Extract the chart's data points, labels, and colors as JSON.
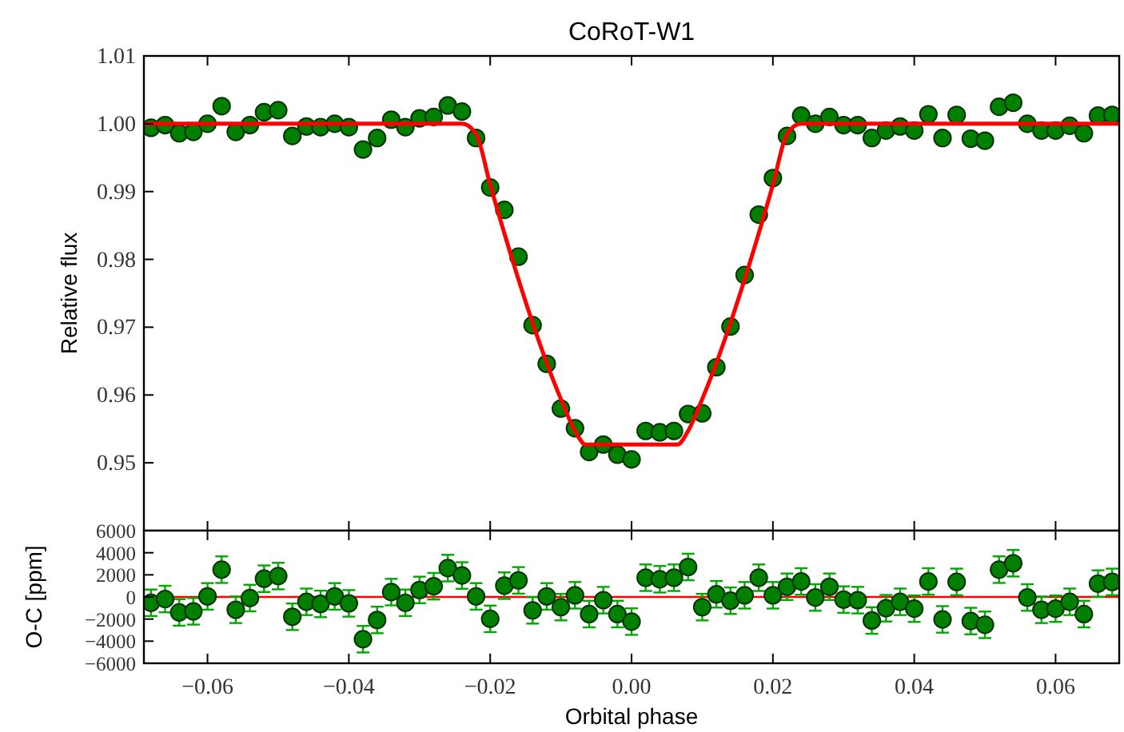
{
  "chart_data": [
    {
      "type": "scatter",
      "title": "CoRoT-W1",
      "ylabel": "Relative flux",
      "xlim": [
        -0.069,
        0.069
      ],
      "ylim": [
        0.94,
        1.01
      ],
      "xticks": [
        -0.06,
        -0.04,
        -0.02,
        0,
        0.02,
        0.04,
        0.06
      ],
      "yticks": [
        {
          "value": 0.94,
          "label": null
        },
        0.95,
        0.96,
        0.97,
        0.98,
        0.99,
        {
          "value": 1,
          "label": "1.00"
        },
        1.01
      ],
      "tick_labels": "y",
      "series": [
        {
          "marker": "circle",
          "color": "#007f00",
          "x": [
            -0.068,
            -0.066,
            -0.064,
            -0.062,
            -0.06,
            -0.058,
            -0.056,
            -0.054,
            -0.052,
            -0.05,
            -0.048,
            -0.046,
            -0.044,
            -0.042,
            -0.04,
            -0.038,
            -0.036,
            -0.034,
            -0.032,
            -0.03,
            -0.028,
            -0.026,
            -0.024,
            -0.022,
            -0.02,
            -0.018,
            -0.016,
            -0.014,
            -0.012,
            -0.01,
            -0.008,
            -0.006,
            -0.004,
            -0.002,
            0,
            0.002,
            0.004,
            0.006,
            0.008,
            0.01,
            0.012,
            0.014,
            0.016,
            0.018,
            0.02,
            0.022,
            0.024,
            0.026,
            0.028,
            0.03,
            0.032,
            0.034,
            0.036,
            0.038,
            0.04,
            0.042,
            0.044,
            0.046,
            0.048,
            0.05,
            0.052,
            0.054,
            0.056,
            0.058,
            0.06,
            0.062,
            0.064,
            0.066,
            0.068
          ],
          "values": [
            0.9994,
            0.9998,
            0.9986,
            0.9988,
            1.0,
            1.0026,
            0.9988,
            0.9998,
            1.0017,
            1.002,
            0.9982,
            0.9996,
            0.9995,
            1.0,
            0.9995,
            0.9962,
            0.9979,
            1.0006,
            0.9995,
            1.0008,
            1.001,
            1.0027,
            1.0018,
            0.9979,
            0.9906,
            0.9873,
            0.9804,
            0.9703,
            0.9646,
            0.958,
            0.9551,
            0.9516,
            0.9527,
            0.9512,
            0.9505,
            0.9547,
            0.9545,
            0.9547,
            0.9572,
            0.9573,
            0.9641,
            0.9701,
            0.9777,
            0.9866,
            0.992,
            0.9982,
            1.0012,
            1.0,
            1.001,
            0.9998,
            0.9998,
            0.9979,
            0.999,
            0.9996,
            0.999,
            1.0014,
            0.9979,
            1.0013,
            0.9978,
            0.9975,
            1.0025,
            1.0031,
            1.0,
            0.999,
            0.999,
            0.9997,
            0.9986,
            1.0012,
            1.0013
          ]
        },
        {
          "type": "line",
          "marker": "none",
          "color": "#ff0000",
          "x": [
            -0.069,
            -0.024,
            -0.022,
            -0.02,
            -0.01,
            -0.008,
            -0.0065,
            0.0065,
            0.008,
            0.01,
            0.02,
            0.022,
            0.024,
            0.069
          ],
          "values": [
            1.0,
            1.0,
            0.9985,
            0.991,
            0.9594,
            0.9547,
            0.9527,
            0.9527,
            0.9547,
            0.9594,
            0.991,
            0.9985,
            1.0,
            1.0
          ]
        }
      ]
    },
    {
      "type": "scatter",
      "xlabel": "Orbital phase",
      "ylabel": "O-C [ppm]",
      "xlim": [
        -0.069,
        0.069
      ],
      "ylim": [
        -6000,
        6000
      ],
      "xticks": [
        {
          "value": -0.06,
          "label": "−0.06"
        },
        {
          "value": -0.04,
          "label": "−0.04"
        },
        {
          "value": -0.02,
          "label": "−0.02"
        },
        {
          "value": 0,
          "label": "0.00"
        },
        0.02,
        0.04,
        0.06
      ],
      "yticks": [
        {
          "value": -6000,
          "label": "−6000"
        },
        {
          "value": -4000,
          "label": "−4000"
        },
        {
          "value": -2000,
          "label": "−2000"
        },
        0,
        2000,
        4000,
        6000
      ],
      "series": [
        {
          "type": "line",
          "marker": "none",
          "color": "#ff0000",
          "x": [
            -0.069,
            0.069
          ],
          "values": [
            0,
            0
          ]
        },
        {
          "marker": "circle",
          "color": "#007f00",
          "x": [
            -0.068,
            -0.066,
            -0.064,
            -0.062,
            -0.06,
            -0.058,
            -0.056,
            -0.054,
            -0.052,
            -0.05,
            -0.048,
            -0.046,
            -0.044,
            -0.042,
            -0.04,
            -0.038,
            -0.036,
            -0.034,
            -0.032,
            -0.03,
            -0.028,
            -0.026,
            -0.024,
            -0.022,
            -0.02,
            -0.018,
            -0.016,
            -0.014,
            -0.012,
            -0.01,
            -0.008,
            -0.006,
            -0.004,
            -0.002,
            0,
            0.002,
            0.004,
            0.006,
            0.008,
            0.01,
            0.012,
            0.014,
            0.016,
            0.018,
            0.02,
            0.022,
            0.024,
            0.026,
            0.028,
            0.03,
            0.032,
            0.034,
            0.036,
            0.038,
            0.04,
            0.042,
            0.044,
            0.046,
            0.048,
            0.05,
            0.052,
            0.054,
            0.056,
            0.058,
            0.06,
            0.062,
            0.064,
            0.066,
            0.068
          ],
          "values": [
            -530,
            -190,
            -1400,
            -1300,
            50,
            2470,
            -1160,
            -100,
            1650,
            1890,
            -1790,
            -440,
            -630,
            50,
            -580,
            -3820,
            -2080,
            440,
            -530,
            630,
            970,
            2610,
            1940,
            50,
            -1980,
            1020,
            1500,
            -1210,
            50,
            -920,
            150,
            -1550,
            -290,
            -1550,
            -2230,
            1740,
            1600,
            1740,
            2710,
            -920,
            240,
            -340,
            150,
            1740,
            150,
            920,
            1400,
            -50,
            920,
            -240,
            -290,
            -2130,
            -1020,
            -440,
            -1060,
            1400,
            -2030,
            1360,
            -2180,
            -2520,
            2470,
            3050,
            -50,
            -1160,
            -1060,
            -440,
            -1550,
            1210,
            1360
          ],
          "errors": [
            1200,
            1200,
            1200,
            1200,
            1200,
            1200,
            1200,
            1200,
            1200,
            1200,
            1200,
            1200,
            1200,
            1200,
            1200,
            1200,
            1200,
            1200,
            1200,
            1200,
            1200,
            1200,
            1200,
            1200,
            1200,
            1200,
            1200,
            1200,
            1200,
            1200,
            1200,
            1200,
            1200,
            1200,
            1200,
            1200,
            1200,
            1200,
            1200,
            1200,
            1200,
            1200,
            1200,
            1200,
            1200,
            1200,
            1200,
            1200,
            1200,
            1200,
            1200,
            1200,
            1200,
            1200,
            1200,
            1200,
            1200,
            1200,
            1200,
            1200,
            1200,
            1200,
            1200,
            1200,
            1200,
            1200,
            1200,
            1200,
            1200
          ]
        }
      ]
    }
  ]
}
